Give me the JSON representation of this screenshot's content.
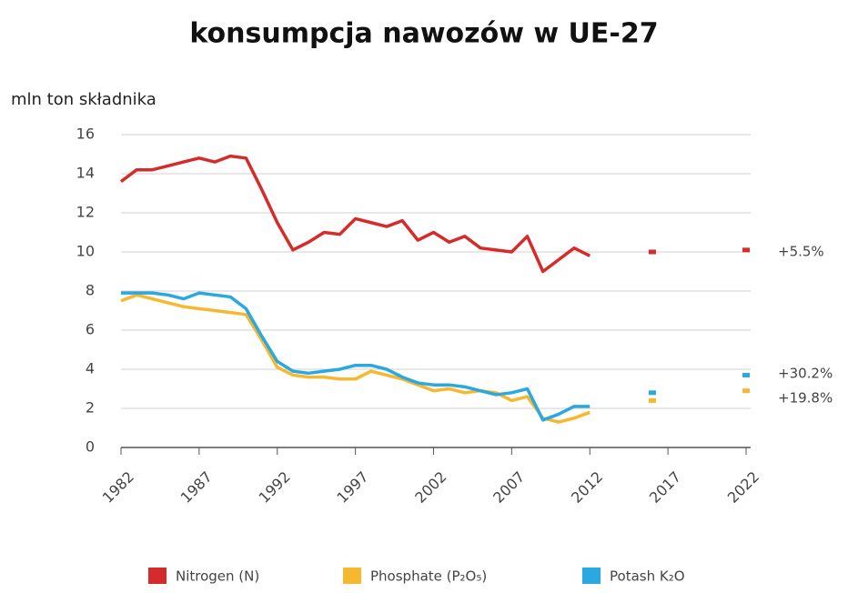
{
  "chart_data": {
    "type": "line",
    "title": "konsumpcja nawozów w UE-27",
    "y_label": "mln ton składnika",
    "x": [
      1982,
      1983,
      1984,
      1985,
      1986,
      1987,
      1988,
      1989,
      1990,
      1991,
      1992,
      1993,
      1994,
      1995,
      1996,
      1997,
      1998,
      1999,
      2000,
      2001,
      2002,
      2003,
      2004,
      2005,
      2006,
      2007,
      2008,
      2009,
      2010,
      2011,
      2012,
      2013,
      2014,
      2015,
      2016,
      2017,
      2018,
      2019,
      2020,
      2021,
      2022
    ],
    "series": [
      {
        "name": "Nitrogen (N)",
        "color": "#d62b2b",
        "values": [
          13.6,
          14.2,
          14.2,
          14.4,
          14.6,
          14.8,
          14.6,
          14.9,
          14.8,
          13.2,
          11.5,
          10.1,
          10.5,
          11.0,
          10.9,
          11.7,
          11.5,
          11.3,
          11.6,
          10.6,
          11.0,
          10.5,
          10.8,
          10.2,
          10.1,
          10.0,
          10.8,
          9.0,
          9.6,
          10.2,
          9.8,
          null,
          null,
          null,
          10.0,
          null,
          null,
          null,
          null,
          null,
          10.1
        ]
      },
      {
        "name": "Phosphate (P₂O₅)",
        "color": "#f5b82e",
        "values": [
          7.5,
          7.8,
          7.6,
          7.4,
          7.2,
          7.1,
          7.0,
          6.9,
          6.8,
          5.5,
          4.1,
          3.7,
          3.6,
          3.6,
          3.5,
          3.5,
          3.9,
          3.7,
          3.5,
          3.2,
          2.9,
          3.0,
          2.8,
          2.9,
          2.8,
          2.4,
          2.6,
          1.5,
          1.3,
          1.5,
          1.8,
          null,
          null,
          null,
          2.4,
          null,
          null,
          null,
          null,
          null,
          2.9
        ]
      },
      {
        "name": "Potash K₂O",
        "color": "#2aa8e0",
        "values": [
          7.9,
          7.9,
          7.9,
          7.8,
          7.6,
          7.9,
          7.8,
          7.7,
          7.1,
          5.7,
          4.4,
          3.9,
          3.8,
          3.9,
          4.0,
          4.2,
          4.2,
          4.0,
          3.6,
          3.3,
          3.2,
          3.2,
          3.1,
          2.9,
          2.7,
          2.8,
          3.0,
          1.4,
          1.7,
          2.1,
          2.1,
          null,
          null,
          null,
          2.8,
          null,
          null,
          null,
          null,
          null,
          3.7
        ]
      }
    ],
    "annotations": [
      "+5.5%",
      "+30.2%",
      "+19.8%"
    ],
    "xlim": [
      1982,
      2022
    ],
    "xticks": [
      1982,
      1987,
      1992,
      1997,
      2002,
      2007,
      2012,
      2017,
      2022
    ],
    "ylim": [
      0,
      16
    ],
    "yticks": [
      0,
      2,
      4,
      6,
      8,
      10,
      12,
      14,
      16
    ],
    "grid": true
  }
}
